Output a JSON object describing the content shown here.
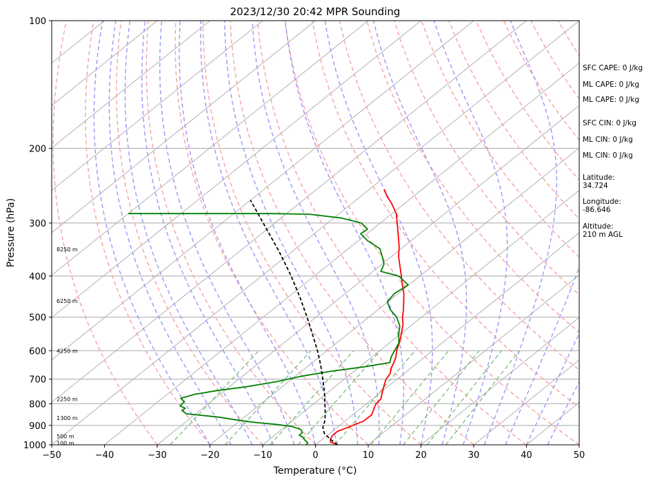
{
  "chart_data": {
    "type": "line",
    "title": "2023/12/30 20:42 MPR Sounding",
    "xlabel": "Temperature (°C)",
    "ylabel": "Pressure (hPa)",
    "xlim": [
      -50,
      50
    ],
    "ylim": [
      1000,
      100
    ],
    "y_scale": "log",
    "skew": true,
    "x_ticks": [
      -50,
      -40,
      -30,
      -20,
      -10,
      0,
      10,
      20,
      30,
      40,
      50
    ],
    "x_tick_labels": [
      "−50",
      "−40",
      "−30",
      "−20",
      "−10",
      "0",
      "10",
      "20",
      "30",
      "40",
      "50"
    ],
    "y_ticks": [
      1000,
      900,
      800,
      700,
      600,
      500,
      400,
      300,
      200,
      100
    ],
    "y_tick_labels": [
      "1000",
      "900",
      "800",
      "700",
      "600",
      "500",
      "400",
      "300",
      "200",
      "100"
    ],
    "grid": true,
    "series": [
      {
        "role": "temperature",
        "color": "#ff0000",
        "points": [
          {
            "p": 1000,
            "t": 4.2
          },
          {
            "p": 985,
            "t": 2.2
          },
          {
            "p": 970,
            "t": 1.5
          },
          {
            "p": 950,
            "t": 1.0
          },
          {
            "p": 930,
            "t": 1.0
          },
          {
            "p": 910,
            "t": 2.0
          },
          {
            "p": 880,
            "t": 3.5
          },
          {
            "p": 850,
            "t": 3.6
          },
          {
            "p": 820,
            "t": 2.5
          },
          {
            "p": 800,
            "t": 1.8
          },
          {
            "p": 780,
            "t": 1.6
          },
          {
            "p": 750,
            "t": 0.2
          },
          {
            "p": 720,
            "t": -1.2
          },
          {
            "p": 700,
            "t": -2.1
          },
          {
            "p": 680,
            "t": -2.6
          },
          {
            "p": 660,
            "t": -3.7
          },
          {
            "p": 640,
            "t": -4.5
          },
          {
            "p": 620,
            "t": -5.5
          },
          {
            "p": 600,
            "t": -6.8
          },
          {
            "p": 570,
            "t": -8.4
          },
          {
            "p": 540,
            "t": -10.4
          },
          {
            "p": 520,
            "t": -11.8
          },
          {
            "p": 500,
            "t": -13.6
          },
          {
            "p": 480,
            "t": -15.2
          },
          {
            "p": 460,
            "t": -17.0
          },
          {
            "p": 440,
            "t": -18.9
          },
          {
            "p": 420,
            "t": -21.2
          },
          {
            "p": 400,
            "t": -23.5
          },
          {
            "p": 380,
            "t": -26.0
          },
          {
            "p": 360,
            "t": -28.6
          },
          {
            "p": 340,
            "t": -31.0
          },
          {
            "p": 320,
            "t": -33.8
          },
          {
            "p": 300,
            "t": -36.8
          },
          {
            "p": 285,
            "t": -39.2
          },
          {
            "p": 270,
            "t": -42.4
          },
          {
            "p": 260,
            "t": -44.9
          },
          {
            "p": 250,
            "t": -47.2
          }
        ]
      },
      {
        "role": "dewpoint",
        "color": "#008000",
        "points": [
          {
            "p": 1000,
            "t": -1.7
          },
          {
            "p": 990,
            "t": -1.9
          },
          {
            "p": 975,
            "t": -3.1
          },
          {
            "p": 960,
            "t": -4.1
          },
          {
            "p": 950,
            "t": -5.3
          },
          {
            "p": 935,
            "t": -5.4
          },
          {
            "p": 920,
            "t": -6.4
          },
          {
            "p": 905,
            "t": -8.8
          },
          {
            "p": 895,
            "t": -12.3
          },
          {
            "p": 885,
            "t": -17.0
          },
          {
            "p": 875,
            "t": -20.4
          },
          {
            "p": 860,
            "t": -25.0
          },
          {
            "p": 845,
            "t": -31.8
          },
          {
            "p": 830,
            "t": -33.4
          },
          {
            "p": 820,
            "t": -33.3
          },
          {
            "p": 810,
            "t": -34.8
          },
          {
            "p": 790,
            "t": -35.1
          },
          {
            "p": 777,
            "t": -36.5
          },
          {
            "p": 760,
            "t": -34.8
          },
          {
            "p": 745,
            "t": -31.4
          },
          {
            "p": 730,
            "t": -26.9
          },
          {
            "p": 710,
            "t": -22.3
          },
          {
            "p": 690,
            "t": -19.0
          },
          {
            "p": 670,
            "t": -14.2
          },
          {
            "p": 655,
            "t": -9.2
          },
          {
            "p": 640,
            "t": -5.3
          },
          {
            "p": 620,
            "t": -6.4
          },
          {
            "p": 600,
            "t": -7.2
          },
          {
            "p": 575,
            "t": -8.2
          },
          {
            "p": 550,
            "t": -10.2
          },
          {
            "p": 525,
            "t": -12.0
          },
          {
            "p": 500,
            "t": -14.7
          },
          {
            "p": 480,
            "t": -17.7
          },
          {
            "p": 460,
            "t": -20.1
          },
          {
            "p": 440,
            "t": -20.7
          },
          {
            "p": 420,
            "t": -20.1
          },
          {
            "p": 400,
            "t": -24.0
          },
          {
            "p": 390,
            "t": -28.5
          },
          {
            "p": 375,
            "t": -29.6
          },
          {
            "p": 360,
            "t": -31.7
          },
          {
            "p": 345,
            "t": -34.0
          },
          {
            "p": 330,
            "t": -38.3
          },
          {
            "p": 318,
            "t": -41.2
          },
          {
            "p": 310,
            "t": -41.0
          },
          {
            "p": 300,
            "t": -43.6
          },
          {
            "p": 292,
            "t": -48.5
          },
          {
            "p": 286,
            "t": -55.5
          },
          {
            "p": 285,
            "t": -63.0
          },
          {
            "p": 285,
            "t": -90.0
          }
        ]
      },
      {
        "role": "parcel",
        "color": "#000000",
        "style": "dashed",
        "points": [
          {
            "p": 1000,
            "t": 4.2
          },
          {
            "p": 970,
            "t": 1.5
          },
          {
            "p": 940,
            "t": -1.0
          },
          {
            "p": 910,
            "t": -2.7
          },
          {
            "p": 880,
            "t": -3.8
          },
          {
            "p": 850,
            "t": -5.2
          },
          {
            "p": 800,
            "t": -7.9
          },
          {
            "p": 750,
            "t": -10.8
          },
          {
            "p": 700,
            "t": -14.1
          },
          {
            "p": 650,
            "t": -17.7
          },
          {
            "p": 600,
            "t": -21.8
          },
          {
            "p": 550,
            "t": -26.5
          },
          {
            "p": 500,
            "t": -31.7
          },
          {
            "p": 450,
            "t": -37.6
          },
          {
            "p": 400,
            "t": -44.4
          },
          {
            "p": 350,
            "t": -52.5
          },
          {
            "p": 300,
            "t": -62.2
          },
          {
            "p": 265,
            "t": -70.0
          }
        ]
      }
    ],
    "height_labels": [
      {
        "p": 990,
        "text": "100 m"
      },
      {
        "p": 954,
        "text": "500 m"
      },
      {
        "p": 864,
        "text": "1300 m"
      },
      {
        "p": 780,
        "text": "2250 m"
      },
      {
        "p": 600,
        "text": "4250 m"
      },
      {
        "p": 458,
        "text": "6250 m"
      },
      {
        "p": 346,
        "text": "8250 m"
      }
    ]
  },
  "stats": [
    "SFC CAPE: 0 J/kg",
    "ML CAPE: 0 J/kg",
    "ML CAPE: 0 J/kg",
    "SFC CIN: 0 J/kg",
    "ML CIN: 0 J/kg",
    "ML CIN: 0 J/kg"
  ],
  "location": [
    [
      "Latitude:",
      "34.724"
    ],
    [
      "Longitude:",
      "-86.646"
    ],
    [
      "Altitude:",
      "210 m AGL"
    ]
  ],
  "colors": {
    "dry_adiabat": "#f4a3a3",
    "moist_adiabat": "#9f95f5",
    "mixing_ratio": "#80c080",
    "isotherm": "#a8a8a8",
    "isobar": "#a8a8a8"
  }
}
